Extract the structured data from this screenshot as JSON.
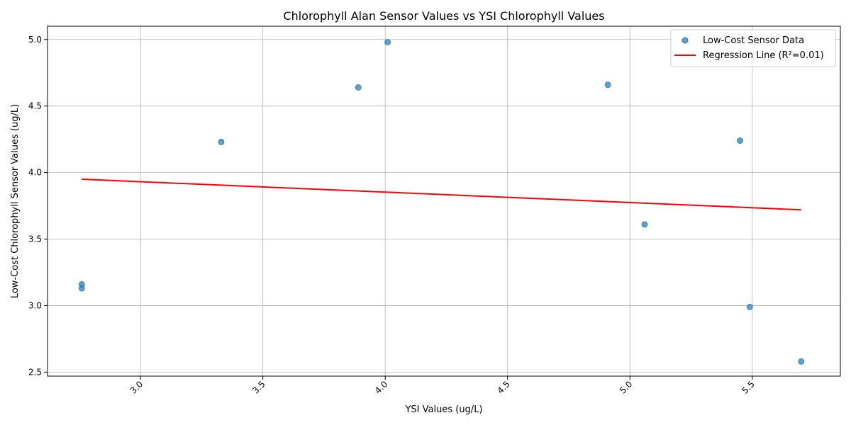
{
  "chart_data": {
    "type": "scatter",
    "title": "Chlorophyll Alan Sensor Values vs YSI Chlorophyll Values",
    "xlabel": "YSI Values (ug/L)",
    "ylabel": "Low-Cost Chlorophyll Sensor Values (ug/L)",
    "xlim": [
      2.62,
      5.86
    ],
    "ylim": [
      2.47,
      5.1
    ],
    "xticks": [
      3.0,
      3.5,
      4.0,
      4.5,
      5.0,
      5.5
    ],
    "xtick_labels": [
      "3.0",
      "3.5",
      "4.0",
      "4.5",
      "5.0",
      "5.5"
    ],
    "yticks": [
      2.5,
      3.0,
      3.5,
      4.0,
      4.5,
      5.0
    ],
    "ytick_labels": [
      "2.5",
      "3.0",
      "3.5",
      "4.0",
      "4.5",
      "5.0"
    ],
    "grid": true,
    "legend_position": "top-right",
    "series": [
      {
        "name": "Low-Cost Sensor Data",
        "kind": "scatter",
        "color": "#1f77b4",
        "points": [
          {
            "x": 2.76,
            "y": 3.16
          },
          {
            "x": 2.76,
            "y": 3.13
          },
          {
            "x": 3.33,
            "y": 4.23
          },
          {
            "x": 3.89,
            "y": 4.64
          },
          {
            "x": 4.01,
            "y": 4.98
          },
          {
            "x": 4.91,
            "y": 4.66
          },
          {
            "x": 5.06,
            "y": 3.61
          },
          {
            "x": 5.45,
            "y": 4.24
          },
          {
            "x": 5.49,
            "y": 2.99
          },
          {
            "x": 5.7,
            "y": 2.58
          }
        ]
      },
      {
        "name": "Regression Line (R²=0.01)",
        "kind": "line",
        "color": "#ff0000",
        "points": [
          {
            "x": 2.76,
            "y": 3.95
          },
          {
            "x": 5.7,
            "y": 3.72
          }
        ]
      }
    ]
  }
}
